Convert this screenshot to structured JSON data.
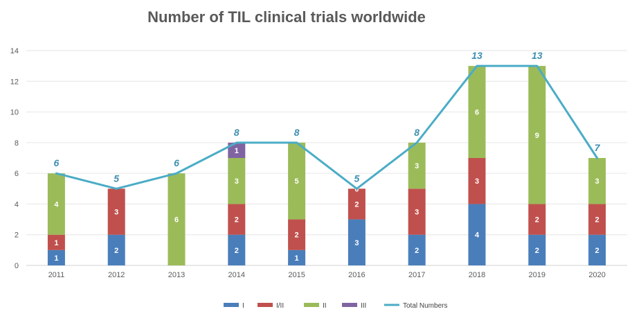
{
  "chart_data": {
    "type": "bar",
    "stacked": true,
    "title": "Number of TIL clinical trials worldwide",
    "xlabel": "",
    "ylabel": "",
    "ylim": [
      0,
      14
    ],
    "yticks": [
      0,
      2,
      4,
      6,
      8,
      10,
      12,
      14
    ],
    "grid": true,
    "legend_position": "bottom",
    "categories": [
      "2011",
      "2012",
      "2013",
      "2014",
      "2015",
      "2016",
      "2017",
      "2018",
      "2019",
      "2020"
    ],
    "series": [
      {
        "name": "I",
        "color": "#4a7ebb",
        "values": [
          1,
          2,
          0,
          2,
          1,
          3,
          2,
          4,
          2,
          2
        ]
      },
      {
        "name": "I/II",
        "color": "#c0504d",
        "values": [
          1,
          3,
          0,
          2,
          2,
          2,
          3,
          3,
          2,
          2
        ]
      },
      {
        "name": "II",
        "color": "#9bbb59",
        "values": [
          4,
          0,
          6,
          3,
          5,
          0,
          3,
          6,
          9,
          3
        ]
      },
      {
        "name": "III",
        "color": "#8064a2",
        "values": [
          0,
          0,
          0,
          1,
          0,
          0,
          0,
          0,
          0,
          0
        ]
      }
    ],
    "line": {
      "name": "Total Numbers",
      "color": "#4bacc6",
      "values": [
        6,
        5,
        6,
        8,
        8,
        5,
        8,
        13,
        13,
        7
      ]
    },
    "extra_labels": [
      {
        "category": "2016",
        "value_label": "0"
      }
    ]
  }
}
